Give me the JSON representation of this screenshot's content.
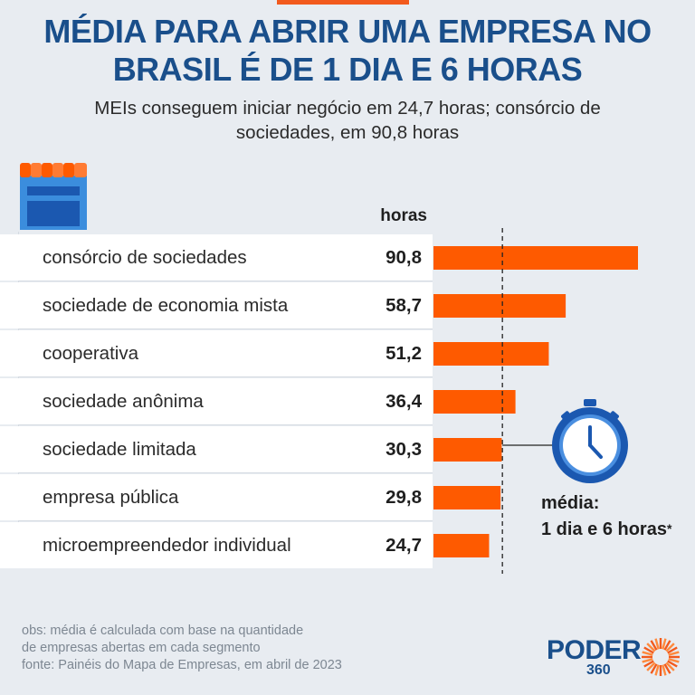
{
  "title": [
    "MÉDIA PARA ABRIR UMA EMPRESA NO",
    "BRASIL É DE 1 DIA E 6 HORAS"
  ],
  "subtitle": [
    "MEIs conseguem iniciar negócio em 24,7 horas; consórcio de",
    "sociedades, em 90,8 horas"
  ],
  "column_header": "horas",
  "average": {
    "label_line1": "média:",
    "label_line2": "1 dia e 6 horas",
    "asterisk": "*",
    "value_hours": 30
  },
  "notes": [
    "obs: média é calculada com base na quantidade",
    "de empresas abertas em cada segmento",
    "fonte: Painéis do Mapa de Empresas, em abril de 2023"
  ],
  "logo": {
    "text": "PODER",
    "number": "360"
  },
  "colors": {
    "bar": "#fe5a00",
    "title": "#1a4f8b",
    "background": "#e8ecf1",
    "clock_ring": "#1b58b0",
    "clock_face": "#4a8fe0"
  },
  "chart_data": {
    "type": "bar",
    "orientation": "horizontal",
    "categories": [
      "consórcio de sociedades",
      "sociedade de economia mista",
      "cooperativa",
      "sociedade anônima",
      "sociedade limitada",
      "empresa pública",
      "microempreendedor individual"
    ],
    "values": [
      90.8,
      58.7,
      51.2,
      36.4,
      30.3,
      29.8,
      24.7
    ],
    "value_labels": [
      "90,8",
      "58,7",
      "51,2",
      "36,4",
      "30,3",
      "29,8",
      "24,7"
    ],
    "reference_line": 30,
    "xlim": [
      0,
      90.8
    ]
  }
}
